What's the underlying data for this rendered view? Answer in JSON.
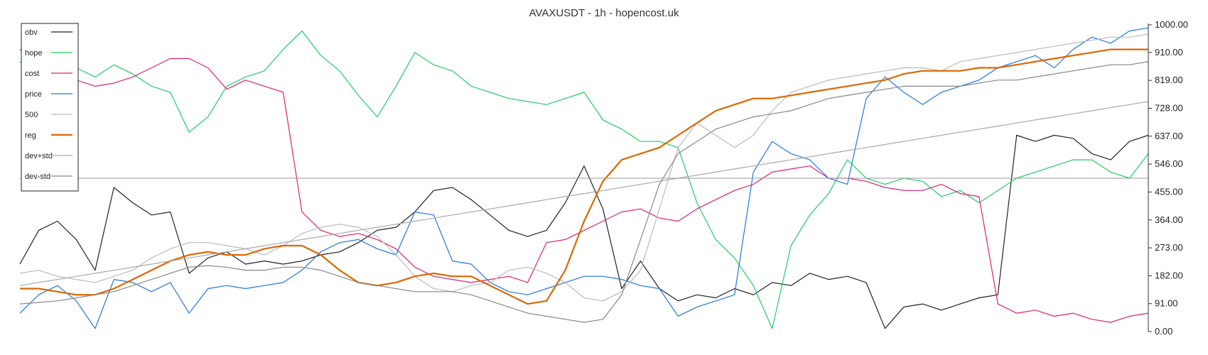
{
  "chart_data": {
    "type": "line",
    "title": "AVAXUSDT - 1h - hopencost.uk",
    "xlabel": "",
    "ylabel": "",
    "ylim": [
      0,
      1000
    ],
    "yticks": [
      "0.00",
      "91.00",
      "182.00",
      "273.00",
      "364.00",
      "455.00",
      "546.00",
      "637.00",
      "728.00",
      "819.00",
      "910.00",
      "1000.00"
    ],
    "hline": 500,
    "grid": false,
    "legend_position": "top-left",
    "x": [
      0,
      5,
      10,
      15,
      20,
      25,
      30,
      35,
      40,
      45,
      50,
      55,
      60,
      65,
      70,
      75,
      80,
      85,
      90,
      95,
      100,
      105,
      110,
      115,
      120,
      125,
      130,
      135,
      140,
      145,
      150,
      155,
      160,
      165,
      170,
      175,
      180,
      185,
      190,
      195,
      200,
      205,
      210,
      215,
      220,
      225,
      230,
      235,
      240,
      245,
      250,
      255,
      260,
      265,
      270,
      275,
      280,
      285,
      290,
      295,
      300
    ],
    "series": [
      {
        "name": "obv",
        "color": "#222222",
        "width": 1.2,
        "values": [
          220,
          330,
          360,
          300,
          200,
          470,
          420,
          380,
          390,
          190,
          240,
          260,
          220,
          230,
          220,
          230,
          250,
          260,
          290,
          330,
          340,
          390,
          460,
          470,
          430,
          380,
          330,
          310,
          330,
          420,
          540,
          400,
          140,
          230,
          140,
          100,
          120,
          110,
          140,
          120,
          160,
          150,
          190,
          170,
          180,
          160,
          10,
          80,
          90,
          70,
          90,
          110,
          120,
          640,
          620,
          640,
          630,
          580,
          560,
          620,
          640
        ]
      },
      {
        "name": "hope",
        "color": "#22cc66",
        "width": 1.2,
        "values": [
          880,
          820,
          870,
          860,
          830,
          870,
          840,
          800,
          780,
          650,
          700,
          800,
          830,
          850,
          920,
          980,
          900,
          850,
          770,
          700,
          800,
          910,
          870,
          850,
          800,
          780,
          760,
          750,
          740,
          760,
          780,
          690,
          660,
          620,
          620,
          600,
          420,
          300,
          240,
          150,
          10,
          280,
          380,
          450,
          560,
          500,
          480,
          500,
          490,
          440,
          460,
          420,
          460,
          500,
          520,
          540,
          560,
          560,
          520,
          500,
          580
        ]
      },
      {
        "name": "cost",
        "color": "#dd2277",
        "width": 1.2,
        "values": [
          920,
          880,
          860,
          820,
          800,
          810,
          830,
          860,
          890,
          890,
          860,
          790,
          820,
          800,
          780,
          390,
          330,
          310,
          320,
          300,
          270,
          210,
          180,
          170,
          160,
          170,
          180,
          160,
          290,
          300,
          330,
          360,
          390,
          400,
          370,
          360,
          400,
          430,
          460,
          480,
          520,
          530,
          540,
          500,
          500,
          490,
          470,
          460,
          460,
          480,
          450,
          440,
          90,
          60,
          70,
          50,
          60,
          40,
          30,
          50,
          60
        ]
      },
      {
        "name": "price",
        "color": "#2277dd",
        "width": 1.2,
        "values": [
          60,
          120,
          150,
          100,
          10,
          170,
          160,
          130,
          160,
          60,
          140,
          150,
          140,
          150,
          160,
          200,
          260,
          290,
          300,
          270,
          250,
          390,
          380,
          230,
          220,
          160,
          130,
          120,
          140,
          160,
          180,
          180,
          170,
          150,
          140,
          50,
          80,
          100,
          120,
          520,
          620,
          580,
          560,
          500,
          480,
          760,
          830,
          780,
          740,
          780,
          800,
          820,
          860,
          880,
          900,
          860,
          920,
          960,
          940,
          980,
          990
        ]
      },
      {
        "name": "500",
        "color": "#bbbbbb",
        "width": 1.2,
        "values": [
          190,
          200,
          180,
          170,
          160,
          180,
          200,
          240,
          270,
          290,
          290,
          280,
          270,
          250,
          280,
          320,
          340,
          350,
          340,
          310,
          250,
          180,
          140,
          130,
          150,
          160,
          200,
          210,
          190,
          160,
          110,
          100,
          130,
          200,
          400,
          600,
          680,
          640,
          600,
          640,
          720,
          780,
          800,
          820,
          830,
          840,
          850,
          860,
          860,
          850,
          880,
          890,
          900,
          910,
          920,
          930,
          940,
          950,
          960,
          960,
          970
        ]
      },
      {
        "name": "reg",
        "color": "#dd6600",
        "width": 2.2,
        "values": [
          140,
          140,
          130,
          120,
          120,
          140,
          170,
          200,
          230,
          250,
          260,
          250,
          250,
          270,
          280,
          280,
          250,
          200,
          160,
          150,
          160,
          180,
          190,
          180,
          180,
          150,
          120,
          90,
          100,
          200,
          360,
          490,
          560,
          580,
          600,
          640,
          680,
          720,
          740,
          760,
          760,
          770,
          780,
          790,
          800,
          810,
          820,
          840,
          850,
          850,
          850,
          860,
          860,
          870,
          880,
          890,
          900,
          910,
          920,
          920,
          920
        ]
      },
      {
        "name": "dev+std",
        "color": "#aaaaaa",
        "width": 1.2,
        "values": [
          150,
          160,
          170,
          180,
          190,
          200,
          210,
          220,
          230,
          240,
          250,
          260,
          270,
          280,
          290,
          300,
          310,
          320,
          330,
          340,
          350,
          360,
          370,
          380,
          390,
          400,
          410,
          420,
          430,
          440,
          450,
          460,
          470,
          480,
          490,
          500,
          510,
          520,
          530,
          540,
          550,
          560,
          570,
          580,
          590,
          600,
          610,
          620,
          630,
          640,
          650,
          660,
          670,
          680,
          690,
          700,
          710,
          720,
          730,
          740,
          750
        ]
      },
      {
        "name": "dev-std",
        "color": "#888888",
        "width": 1.2,
        "values": [
          90,
          95,
          100,
          110,
          120,
          130,
          150,
          170,
          190,
          210,
          215,
          210,
          200,
          200,
          210,
          210,
          200,
          180,
          160,
          150,
          140,
          130,
          130,
          130,
          120,
          100,
          80,
          60,
          50,
          40,
          30,
          40,
          120,
          300,
          480,
          580,
          620,
          660,
          680,
          700,
          710,
          720,
          740,
          760,
          770,
          780,
          790,
          800,
          800,
          800,
          800,
          810,
          820,
          820,
          830,
          840,
          850,
          860,
          870,
          870,
          880
        ]
      }
    ]
  }
}
